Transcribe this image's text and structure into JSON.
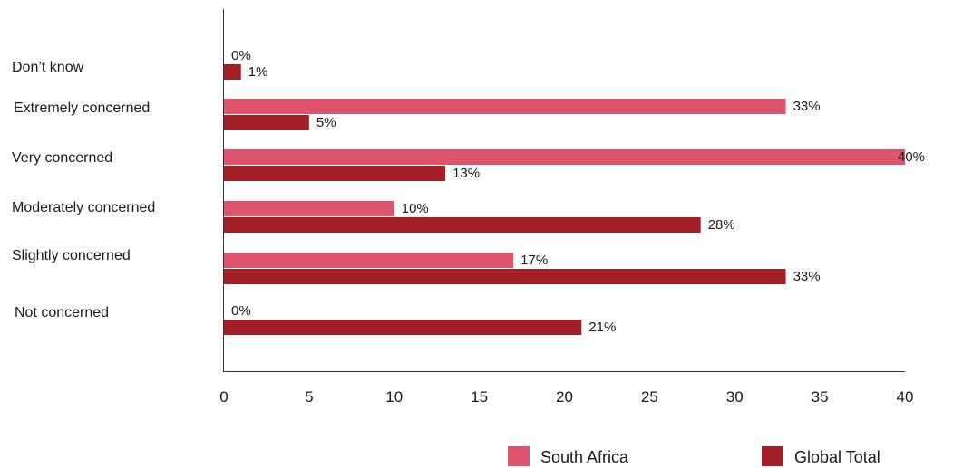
{
  "colors": {
    "south_africa": "#dd546c",
    "global_total": "#a31f25"
  },
  "chart_data": {
    "type": "bar",
    "orientation": "horizontal",
    "categories": [
      "Don’t know",
      "Extremely concerned",
      "Very concerned",
      "Moderately concerned",
      "Slightly concerned",
      "Not concerned"
    ],
    "series": [
      {
        "name": "South Africa",
        "values": [
          0,
          33,
          40,
          10,
          17,
          0
        ],
        "labels": [
          "0%",
          "33%",
          "40%",
          "10%",
          "17%",
          "0%"
        ]
      },
      {
        "name": "Global Total",
        "values": [
          1,
          5,
          13,
          28,
          33,
          21
        ],
        "labels": [
          "1%",
          "5%",
          "13%",
          "28%",
          "33%",
          "21%"
        ]
      }
    ],
    "xlim": [
      0,
      40
    ],
    "xticks": [
      0,
      5,
      10,
      15,
      20,
      25,
      30,
      35,
      40
    ],
    "title": "",
    "xlabel": "",
    "ylabel": "",
    "grid": false,
    "legend_position": "bottom-right"
  }
}
